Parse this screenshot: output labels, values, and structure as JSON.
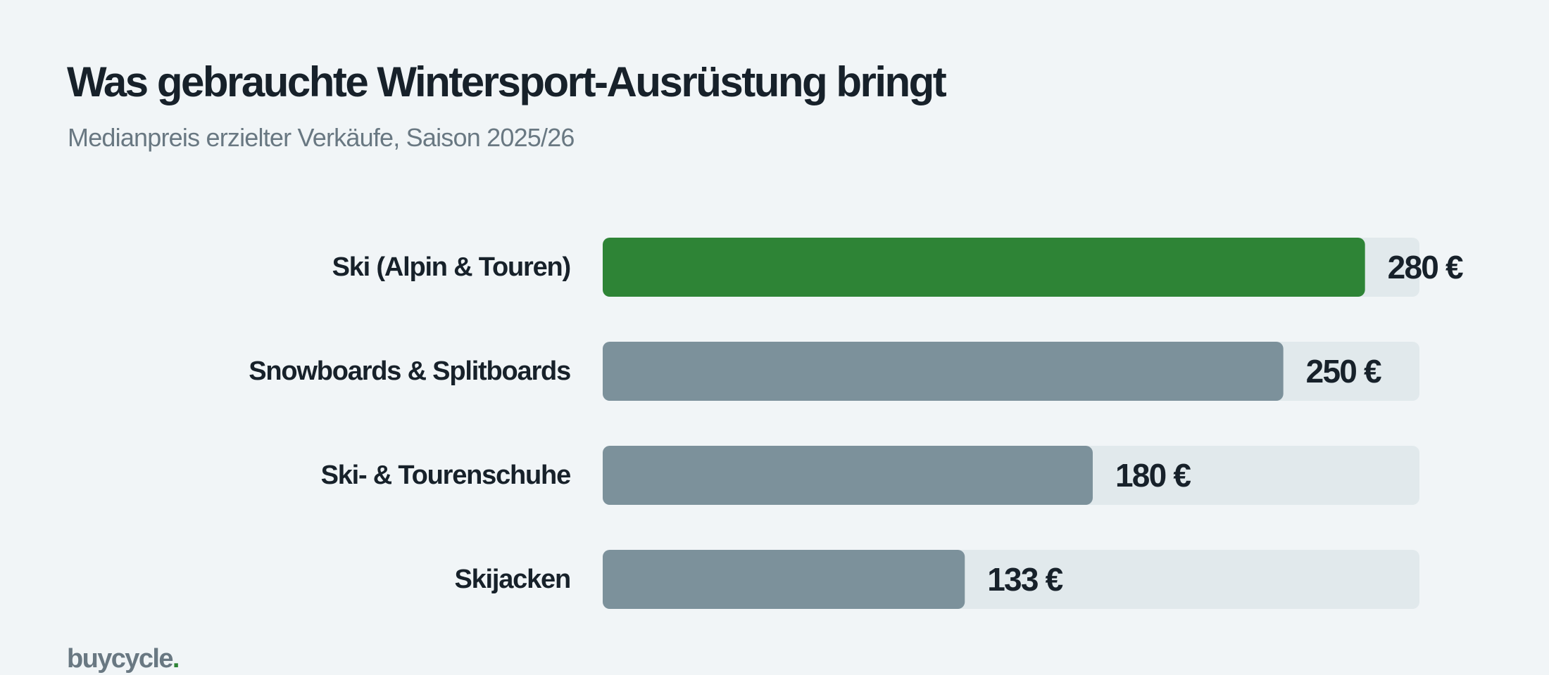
{
  "chart_data": {
    "type": "bar",
    "orientation": "horizontal",
    "title": "Was gebrauchte Wintersport-Ausrüstung bringt",
    "subtitle": "Medianpreis erzielter Verkäufe, Saison 2025/26",
    "categories": [
      "Ski (Alpin & Touren)",
      "Snowboards & Splitboards",
      "Ski- & Tourenschuhe",
      "Skijacken"
    ],
    "values": [
      280,
      250,
      180,
      133
    ],
    "value_labels": [
      "280 €",
      "250 €",
      "180 €",
      "133 €"
    ],
    "xlim": [
      0,
      300
    ],
    "highlight_index": 0,
    "grid": false,
    "colors": {
      "highlight": "#2e8436",
      "bar": "#7c919b",
      "track": "#e1e9ec"
    }
  },
  "brand": {
    "name": "buycycle",
    "dot": "."
  }
}
